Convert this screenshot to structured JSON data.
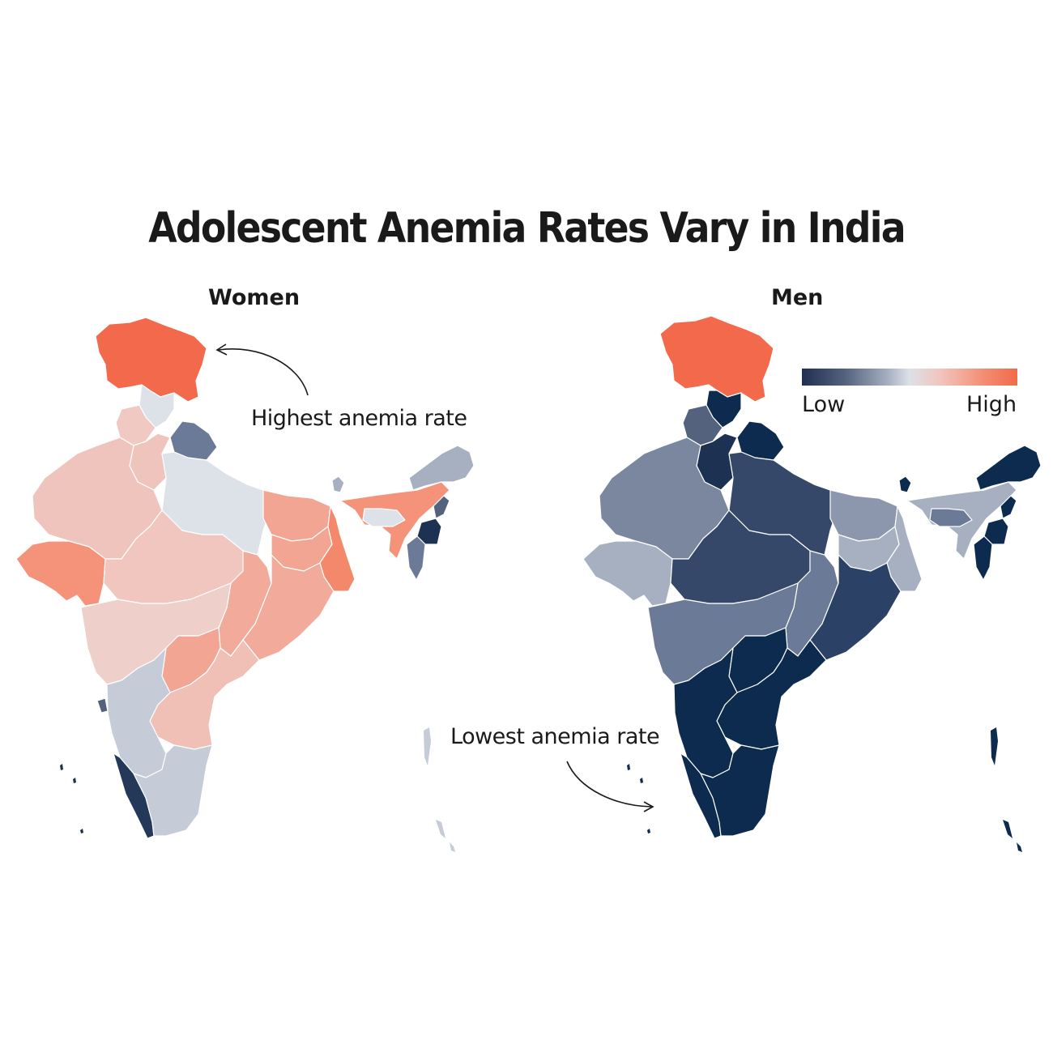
{
  "title": "Adolescent Anemia Rates Vary in India",
  "panels": {
    "women": {
      "title": "Women"
    },
    "men": {
      "title": "Men"
    }
  },
  "annotations": {
    "highest": "Highest anemia rate",
    "lowest": "Lowest anemia rate"
  },
  "legend": {
    "low_label": "Low",
    "high_label": "High",
    "colors": [
      "#1f2f4f",
      "#54627e",
      "#a7b0c1",
      "#dde1e8",
      "#f2c3bb",
      "#f38c71",
      "#f26a4b"
    ]
  },
  "colors": {
    "highest": "#f26a4b",
    "lowest": "#0d2a4f"
  }
}
